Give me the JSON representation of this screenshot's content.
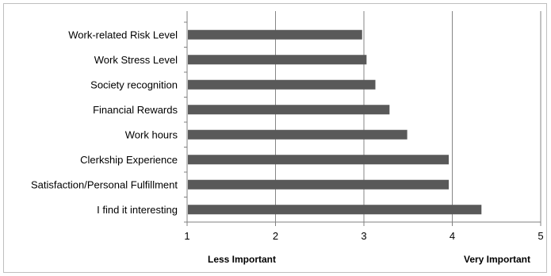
{
  "chart_data": {
    "type": "bar",
    "orientation": "horizontal",
    "categories": [
      "Work-related Risk Level",
      "Work Stress Level",
      "Society recognition",
      "Financial Rewards",
      "Work hours",
      "Clerkship Experience",
      "Satisfaction/Personal Fulfillment",
      "I find it interesting"
    ],
    "values": [
      2.98,
      3.03,
      3.13,
      3.29,
      3.49,
      3.96,
      3.96,
      4.33
    ],
    "xlim": [
      1,
      5
    ],
    "xticks": [
      "1",
      "2",
      "3",
      "4",
      "5"
    ],
    "x_annotations": {
      "low": "Less Important",
      "high": "Very Important"
    },
    "grid": true,
    "legend": "none",
    "bar_color": "#595959",
    "grid_color": "#868686"
  }
}
